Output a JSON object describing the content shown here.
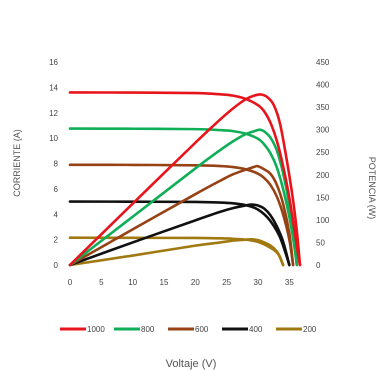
{
  "chart_data": {
    "type": "line",
    "xlabel": "Voltaje (V)",
    "ylabel_left": "CORRIENTE (A)",
    "ylabel_right": "POTENCIA (W)",
    "xlim": [
      0,
      37.5
    ],
    "xticks": [
      "0",
      "5",
      "10",
      "15",
      "20",
      "25",
      "30",
      "35"
    ],
    "ylim_left": [
      0,
      16
    ],
    "yticks_left": [
      "0",
      "2",
      "4",
      "6",
      "8",
      "10",
      "12",
      "14",
      "16"
    ],
    "ylim_right": [
      0,
      450
    ],
    "yticks_right": [
      "0",
      "50",
      "100",
      "150",
      "200",
      "250",
      "300",
      "350",
      "400",
      "450"
    ],
    "grid": false,
    "legend_position": "bottom",
    "series": [
      {
        "name": "1000",
        "color": "#e8141c",
        "isc": 13.6,
        "current": [
          [
            0,
            13.6
          ],
          [
            10,
            13.59
          ],
          [
            20,
            13.55
          ],
          [
            24,
            13.45
          ],
          [
            26,
            13.35
          ],
          [
            28,
            13.1
          ],
          [
            30,
            12.6
          ],
          [
            31,
            12.1
          ],
          [
            32,
            11.2
          ],
          [
            33,
            9.8
          ],
          [
            34,
            7.8
          ],
          [
            35,
            5.3
          ],
          [
            35.8,
            2.8
          ],
          [
            36.5,
            0.5
          ],
          [
            36.7,
            0
          ]
        ],
        "power": [
          [
            0,
            0
          ],
          [
            10,
            136
          ],
          [
            20,
            271
          ],
          [
            24,
            323
          ],
          [
            26,
            347
          ],
          [
            28,
            367
          ],
          [
            29.5,
            376
          ],
          [
            30.5,
            378
          ],
          [
            31.5,
            372
          ],
          [
            32.5,
            355
          ],
          [
            33.5,
            314
          ],
          [
            34.5,
            240
          ],
          [
            35.5,
            153
          ],
          [
            36.2,
            75
          ],
          [
            36.7,
            0
          ]
        ]
      },
      {
        "name": "800",
        "color": "#0fae57",
        "isc": 10.75,
        "current": [
          [
            0,
            10.75
          ],
          [
            10,
            10.74
          ],
          [
            20,
            10.71
          ],
          [
            24,
            10.63
          ],
          [
            26,
            10.55
          ],
          [
            28,
            10.35
          ],
          [
            30,
            9.95
          ],
          [
            31,
            9.5
          ],
          [
            32,
            8.8
          ],
          [
            33,
            7.7
          ],
          [
            34,
            6.0
          ],
          [
            35,
            3.8
          ],
          [
            35.7,
            1.8
          ],
          [
            36.2,
            0
          ]
        ],
        "power": [
          [
            0,
            0
          ],
          [
            10,
            107
          ],
          [
            20,
            214
          ],
          [
            24,
            255
          ],
          [
            26,
            274
          ],
          [
            28,
            290
          ],
          [
            29.5,
            297
          ],
          [
            30.3,
            300
          ],
          [
            31,
            296
          ],
          [
            32,
            282
          ],
          [
            33,
            254
          ],
          [
            34,
            204
          ],
          [
            35,
            133
          ],
          [
            35.7,
            64
          ],
          [
            36.2,
            0
          ]
        ]
      },
      {
        "name": "600",
        "color": "#974214",
        "isc": 7.9,
        "current": [
          [
            0,
            7.9
          ],
          [
            10,
            7.89
          ],
          [
            20,
            7.86
          ],
          [
            24,
            7.8
          ],
          [
            26,
            7.72
          ],
          [
            28,
            7.55
          ],
          [
            30,
            7.2
          ],
          [
            31,
            6.85
          ],
          [
            32,
            6.3
          ],
          [
            33,
            5.4
          ],
          [
            34,
            4.0
          ],
          [
            35,
            2.0
          ],
          [
            35.6,
            0
          ]
        ],
        "power": [
          [
            0,
            0
          ],
          [
            10,
            79
          ],
          [
            20,
            157
          ],
          [
            24,
            187
          ],
          [
            26,
            201
          ],
          [
            28,
            211
          ],
          [
            29.5,
            218
          ],
          [
            30,
            219
          ],
          [
            31,
            212
          ],
          [
            32,
            202
          ],
          [
            33,
            178
          ],
          [
            34,
            136
          ],
          [
            35,
            70
          ],
          [
            35.6,
            0
          ]
        ]
      },
      {
        "name": "400",
        "color": "#111111",
        "isc": 5.0,
        "current": [
          [
            0,
            5.0
          ],
          [
            10,
            4.99
          ],
          [
            20,
            4.97
          ],
          [
            24,
            4.92
          ],
          [
            26,
            4.86
          ],
          [
            28,
            4.72
          ],
          [
            29.5,
            4.5
          ],
          [
            30.5,
            4.2
          ],
          [
            31.5,
            3.75
          ],
          [
            32.5,
            3.1
          ],
          [
            33.5,
            2.2
          ],
          [
            34.3,
            1.1
          ],
          [
            35,
            0
          ]
        ],
        "power": [
          [
            0,
            0
          ],
          [
            10,
            50
          ],
          [
            20,
            99
          ],
          [
            24,
            118
          ],
          [
            26,
            126
          ],
          [
            28,
            132
          ],
          [
            29,
            134
          ],
          [
            30,
            132
          ],
          [
            31,
            125
          ],
          [
            32,
            110
          ],
          [
            33,
            86
          ],
          [
            34,
            52
          ],
          [
            35,
            0
          ]
        ]
      },
      {
        "name": "200",
        "color": "#a07a10",
        "isc": 2.15,
        "current": [
          [
            0,
            2.15
          ],
          [
            10,
            2.14
          ],
          [
            20,
            2.13
          ],
          [
            24,
            2.1
          ],
          [
            26,
            2.07
          ],
          [
            28,
            2.0
          ],
          [
            29.5,
            1.88
          ],
          [
            30.5,
            1.73
          ],
          [
            31.5,
            1.5
          ],
          [
            32.5,
            1.2
          ],
          [
            33.3,
            0.8
          ],
          [
            34,
            0
          ]
        ],
        "power": [
          [
            0,
            0
          ],
          [
            10,
            21
          ],
          [
            20,
            43
          ],
          [
            24,
            50
          ],
          [
            26,
            54
          ],
          [
            28,
            56
          ],
          [
            29,
            57
          ],
          [
            30,
            55
          ],
          [
            31,
            50
          ],
          [
            32,
            43
          ],
          [
            33,
            30
          ],
          [
            33.5,
            18
          ],
          [
            34,
            0
          ]
        ]
      }
    ]
  }
}
